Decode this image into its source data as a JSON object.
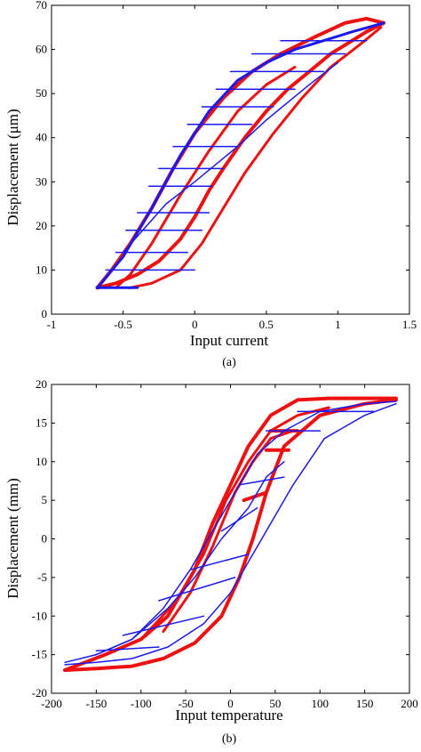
{
  "colors": {
    "red": "#ee1111",
    "blue": "#1a1aee",
    "axis": "#000000"
  },
  "chart_data": [
    {
      "type": "line",
      "caption": "(a)",
      "xlabel": "Input current",
      "ylabel": "Displacement (μm)",
      "xlim": [
        -1,
        1.5
      ],
      "ylim": [
        0,
        70
      ],
      "xticks": [
        -1,
        -0.5,
        0,
        0.5,
        1,
        1.5
      ],
      "xtick_labels": [
        "-1",
        "-0.5",
        "0",
        "0.5",
        "1",
        "1.5"
      ],
      "yticks": [
        0,
        10,
        20,
        30,
        40,
        50,
        60,
        70
      ],
      "ytick_labels": [
        "0",
        "10",
        "20",
        "30",
        "40",
        "50",
        "60",
        "70"
      ],
      "grid": false,
      "legend": "none",
      "series": [
        {
          "color": "red",
          "width": 4,
          "x": [
            -0.68,
            -0.55,
            -0.4,
            -0.25,
            -0.1,
            0.0,
            0.1,
            0.2,
            0.35,
            0.5,
            0.65,
            0.8,
            0.95,
            1.1,
            1.2,
            1.32
          ],
          "y": [
            6,
            7,
            9,
            12,
            17,
            22,
            28,
            33,
            40,
            46,
            51,
            55,
            59,
            62,
            64,
            66
          ]
        },
        {
          "color": "red",
          "width": 4,
          "x": [
            1.32,
            1.2,
            1.05,
            0.85,
            0.6,
            0.4,
            0.2,
            0.0,
            -0.15,
            -0.3,
            -0.45,
            -0.58,
            -0.68
          ],
          "y": [
            66,
            67,
            66,
            63,
            59,
            55,
            49,
            41,
            33,
            24,
            16,
            10,
            6
          ]
        },
        {
          "color": "blue",
          "width": 3,
          "x": [
            -0.68,
            -0.5,
            -0.3,
            -0.1,
            0.1,
            0.3,
            0.5,
            0.7,
            0.9,
            1.1,
            1.32
          ],
          "y": [
            6,
            13,
            24,
            36,
            46,
            53,
            57,
            60,
            62,
            64,
            66
          ]
        },
        {
          "color": "blue",
          "width": 3,
          "x": [
            -0.68,
            -0.4
          ],
          "y": [
            6,
            6
          ]
        },
        {
          "color": "red",
          "width": 3,
          "x": [
            -0.45,
            -0.3,
            -0.1,
            0.05,
            0.2,
            0.35,
            0.55,
            0.75,
            0.95,
            1.15,
            1.3
          ],
          "y": [
            6,
            7,
            10,
            16,
            24,
            32,
            41,
            49,
            56,
            61,
            65
          ]
        },
        {
          "color": "red",
          "width": 3,
          "x": [
            -0.55,
            -0.45,
            -0.3,
            -0.1,
            0.1,
            0.3,
            0.5,
            0.7
          ],
          "y": [
            6,
            9,
            16,
            27,
            37,
            46,
            52,
            56
          ]
        },
        {
          "color": "blue",
          "width": 1.5,
          "x": [
            -0.5,
            -0.2,
            0.0,
            0.3,
            0.5,
            0.8,
            1.0
          ],
          "y": [
            14,
            25,
            30,
            38,
            44,
            52,
            57
          ]
        },
        {
          "color": "blue",
          "width": 1.5,
          "x": [
            -0.62,
            0.0
          ],
          "y": [
            10,
            10
          ]
        },
        {
          "color": "blue",
          "width": 1.5,
          "x": [
            -0.55,
            -0.05
          ],
          "y": [
            14,
            14
          ]
        },
        {
          "color": "blue",
          "width": 1.5,
          "x": [
            -0.48,
            0.05
          ],
          "y": [
            19,
            19
          ]
        },
        {
          "color": "blue",
          "width": 1.5,
          "x": [
            -0.4,
            0.1
          ],
          "y": [
            23,
            23
          ]
        },
        {
          "color": "blue",
          "width": 1.5,
          "x": [
            -0.32,
            0.12
          ],
          "y": [
            29,
            29
          ]
        },
        {
          "color": "blue",
          "width": 1.5,
          "x": [
            -0.25,
            0.2
          ],
          "y": [
            33,
            33
          ]
        },
        {
          "color": "blue",
          "width": 1.5,
          "x": [
            -0.15,
            0.3
          ],
          "y": [
            38,
            38
          ]
        },
        {
          "color": "blue",
          "width": 1.5,
          "x": [
            -0.05,
            0.4
          ],
          "y": [
            43,
            43
          ]
        },
        {
          "color": "blue",
          "width": 1.5,
          "x": [
            0.05,
            0.55
          ],
          "y": [
            47,
            47
          ]
        },
        {
          "color": "blue",
          "width": 1.5,
          "x": [
            0.15,
            0.7
          ],
          "y": [
            51,
            51
          ]
        },
        {
          "color": "blue",
          "width": 1.5,
          "x": [
            0.25,
            0.9
          ],
          "y": [
            55,
            55
          ]
        },
        {
          "color": "blue",
          "width": 1.5,
          "x": [
            0.4,
            1.05
          ],
          "y": [
            59,
            59
          ]
        },
        {
          "color": "blue",
          "width": 1.5,
          "x": [
            0.6,
            1.2
          ],
          "y": [
            62,
            62
          ]
        }
      ]
    },
    {
      "type": "line",
      "caption": "(b)",
      "xlabel": "Input temperature",
      "ylabel": "Displacement (mm)",
      "xlim": [
        -200,
        200
      ],
      "ylim": [
        -20,
        20
      ],
      "xticks": [
        -200,
        -150,
        -100,
        -50,
        0,
        50,
        100,
        150,
        200
      ],
      "xtick_labels": [
        "-200",
        "-150",
        "-100",
        "-50",
        "0",
        "50",
        "100",
        "150",
        "200"
      ],
      "yticks": [
        -20,
        -15,
        -10,
        -5,
        0,
        5,
        10,
        15,
        20
      ],
      "ytick_labels": [
        "-20",
        "-15",
        "-10",
        "-5",
        "0",
        "5",
        "10",
        "15",
        "20"
      ],
      "grid": false,
      "legend": "none",
      "series": [
        {
          "color": "red",
          "width": 4,
          "x": [
            -185,
            -140,
            -100,
            -70,
            -40,
            -20,
            0,
            20,
            45,
            75,
            110,
            150,
            185
          ],
          "y": [
            -17,
            -15,
            -13,
            -10,
            -4,
            2,
            7,
            12,
            16,
            18,
            18.2,
            18.2,
            18.2
          ]
        },
        {
          "color": "red",
          "width": 4,
          "x": [
            185,
            150,
            100,
            60,
            40,
            25,
            10,
            -10,
            -40,
            -75,
            -110,
            -150,
            -185
          ],
          "y": [
            18,
            17.5,
            16,
            12,
            6,
            0,
            -5,
            -10,
            -13.5,
            -15.5,
            -16.5,
            -16.8,
            -17
          ]
        },
        {
          "color": "red",
          "width": 3,
          "x": [
            -100,
            -60,
            -30,
            -5,
            20,
            45,
            75,
            110
          ],
          "y": [
            -13,
            -8,
            -2,
            5,
            10,
            14,
            16,
            17
          ]
        },
        {
          "color": "red",
          "width": 3,
          "x": [
            -75,
            -45,
            -20,
            5,
            25,
            45,
            70
          ],
          "y": [
            -12,
            -7,
            -1,
            6,
            10,
            13,
            14
          ]
        },
        {
          "color": "red",
          "width": 4,
          "x": [
            45,
            75
          ],
          "y": [
            14,
            14
          ]
        },
        {
          "color": "red",
          "width": 4,
          "x": [
            40,
            65
          ],
          "y": [
            11.5,
            11.5
          ]
        },
        {
          "color": "red",
          "width": 4,
          "x": [
            15,
            40
          ],
          "y": [
            5,
            6
          ]
        },
        {
          "color": "blue",
          "width": 1.5,
          "x": [
            -185,
            -150,
            -110,
            -75,
            -45,
            -20,
            5,
            30,
            60,
            100,
            150,
            185
          ],
          "y": [
            -16,
            -15,
            -13,
            -9,
            -4,
            1,
            6,
            11,
            14,
            16.5,
            17.5,
            17.8
          ]
        },
        {
          "color": "blue",
          "width": 1.5,
          "x": [
            185,
            150,
            105,
            70,
            45,
            20,
            0,
            -30,
            -70,
            -110,
            -150,
            -185
          ],
          "y": [
            17.5,
            16,
            13,
            7,
            2,
            -3,
            -7,
            -11,
            -14,
            -15.5,
            -16,
            -16.3
          ]
        },
        {
          "color": "blue",
          "width": 1.5,
          "x": [
            -150,
            -110,
            -70,
            -40,
            -10,
            20,
            40,
            60
          ],
          "y": [
            -15,
            -13,
            -9,
            -5,
            0,
            4,
            8,
            10
          ]
        },
        {
          "color": "blue",
          "width": 1.5,
          "x": [
            -150,
            -80
          ],
          "y": [
            -14.5,
            -14
          ]
        },
        {
          "color": "blue",
          "width": 1.5,
          "x": [
            -120,
            -30
          ],
          "y": [
            -12.5,
            -10
          ]
        },
        {
          "color": "blue",
          "width": 1.5,
          "x": [
            -80,
            5
          ],
          "y": [
            -8,
            -5
          ]
        },
        {
          "color": "blue",
          "width": 1.5,
          "x": [
            -45,
            20
          ],
          "y": [
            -4,
            -2
          ]
        },
        {
          "color": "blue",
          "width": 1.5,
          "x": [
            -10,
            30
          ],
          "y": [
            1,
            4
          ]
        },
        {
          "color": "blue",
          "width": 1.5,
          "x": [
            10,
            60
          ],
          "y": [
            7,
            8
          ]
        },
        {
          "color": "blue",
          "width": 1.5,
          "x": [
            40,
            100
          ],
          "y": [
            14,
            14
          ]
        },
        {
          "color": "blue",
          "width": 1.5,
          "x": [
            75,
            160
          ],
          "y": [
            16.5,
            16.5
          ]
        }
      ]
    }
  ]
}
